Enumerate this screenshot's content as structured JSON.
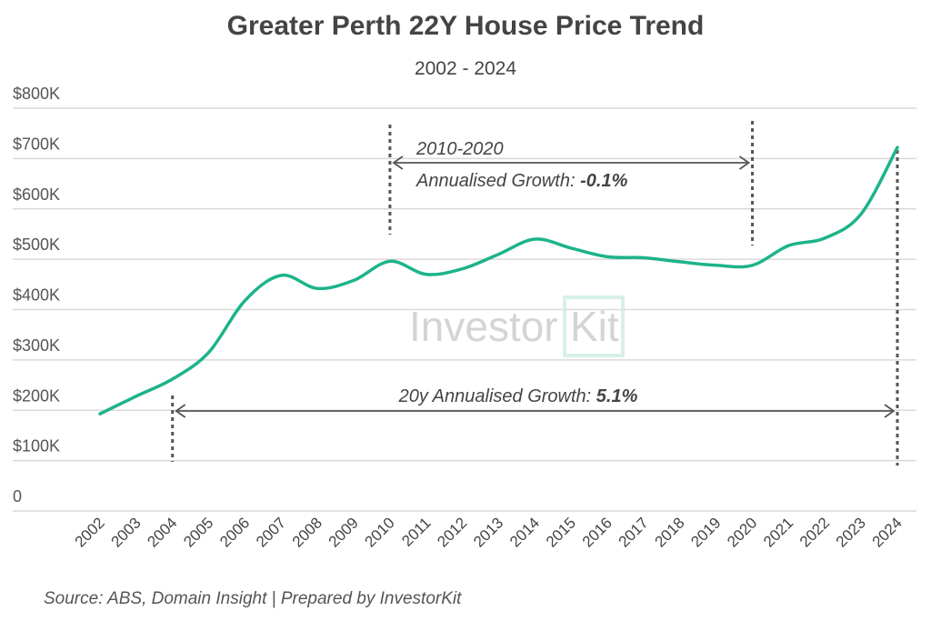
{
  "chart_data": {
    "type": "line",
    "title": "Greater Perth 22Y House Price Trend",
    "subtitle": "2002 - 2024",
    "x": [
      "2002",
      "2003",
      "2004",
      "2005",
      "2006",
      "2007",
      "2008",
      "2009",
      "2010",
      "2011",
      "2012",
      "2013",
      "2014",
      "2015",
      "2016",
      "2017",
      "2018",
      "2019",
      "2020",
      "2021",
      "2022",
      "2023",
      "2024"
    ],
    "values": [
      193000,
      228000,
      262000,
      315000,
      418000,
      468000,
      442000,
      458000,
      496000,
      470000,
      481000,
      510000,
      540000,
      522000,
      505000,
      503000,
      495000,
      488000,
      488000,
      527000,
      542000,
      590000,
      722000
    ],
    "ylim": [
      0,
      800000
    ],
    "yticks": [
      "0",
      "$100K",
      "$200K",
      "$300K",
      "$400K",
      "$500K",
      "$600K",
      "$700K",
      "$800K"
    ],
    "grid": true,
    "line_color": "#1db38a",
    "annotations": {
      "period": {
        "label": "2010-2020",
        "text": "Annualised Growth: ",
        "value": "-0.1%",
        "from": "2010",
        "to": "2020"
      },
      "long": {
        "text": "20y Annualised Growth: ",
        "value": "5.1%",
        "from": "2004",
        "to": "2024"
      }
    }
  },
  "watermark": "InvestorKit",
  "source": "Source: ABS, Domain Insight | Prepared by InvestorKit"
}
